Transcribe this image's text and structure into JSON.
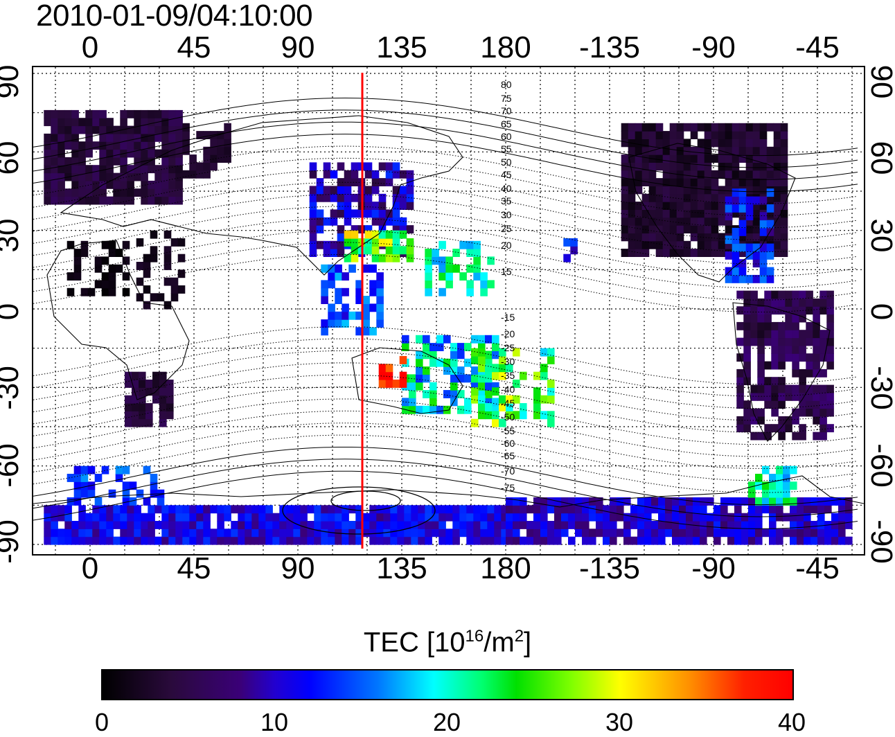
{
  "title": "2010-01-09/04:10:00",
  "lon_ticks": [
    "0",
    "45",
    "90",
    "135",
    "180",
    "-135",
    "-90",
    "-45"
  ],
  "lat_ticks": [
    "90",
    "60",
    "30",
    "0",
    "-30",
    "-60",
    "-90"
  ],
  "contour_labels": [
    "80",
    "75",
    "70",
    "65",
    "60",
    "55",
    "50",
    "45",
    "40",
    "35",
    "30",
    "25",
    "20",
    "15",
    "-15",
    "-20",
    "-25",
    "-30",
    "-35",
    "-40",
    "-45",
    "-50",
    "-55",
    "-60",
    "-65",
    "-70",
    "-75"
  ],
  "colorbar": {
    "label_main": "TEC  [10",
    "label_exp1": "16",
    "label_mid": "/m",
    "label_exp2": "2",
    "label_end": "]",
    "min": 0,
    "max": 40,
    "ticks": [
      "0",
      "10",
      "20",
      "30",
      "40"
    ]
  },
  "colors": {
    "meridian_line": "#ff0000",
    "coast": "#000000"
  }
}
